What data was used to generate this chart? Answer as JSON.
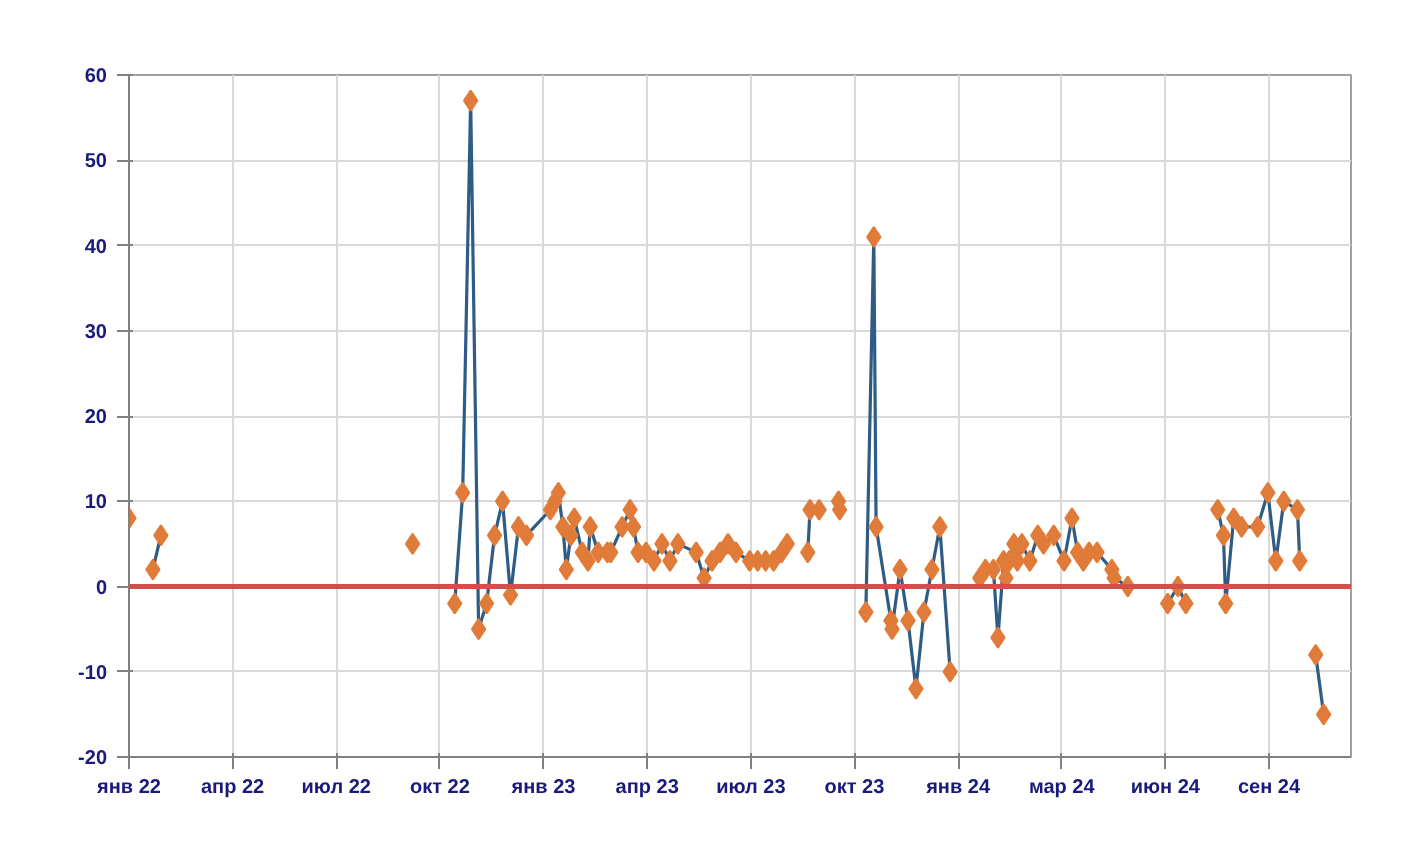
{
  "chart_data": {
    "type": "line",
    "x": [
      "2022-01-01",
      "2022-01-15",
      "2022-01-22",
      "2022-01-29",
      "2022-05-01",
      "2022-09-07",
      "2022-09-25",
      "2022-10-14",
      "2022-10-21",
      "2022-10-28",
      "2022-11-04",
      "2022-11-11",
      "2022-11-18",
      "2022-11-25",
      "2022-12-02",
      "2022-12-09",
      "2022-12-16",
      "2023-01-06",
      "2023-01-10",
      "2023-01-13",
      "2023-01-17",
      "2023-01-20",
      "2023-01-24",
      "2023-01-27",
      "2023-02-03",
      "2023-02-08",
      "2023-02-10",
      "2023-02-17",
      "2023-02-25",
      "2023-02-28",
      "2023-03-10",
      "2023-03-17",
      "2023-03-20",
      "2023-03-24",
      "2023-03-31",
      "2023-04-07",
      "2023-04-14",
      "2023-04-21",
      "2023-04-28",
      "2023-05-14",
      "2023-05-21",
      "2023-05-28",
      "2023-06-04",
      "2023-06-11",
      "2023-06-18",
      "2023-06-30",
      "2023-07-07",
      "2023-07-14",
      "2023-07-21",
      "2023-07-28",
      "2023-08-02",
      "2023-08-10",
      "2023-08-20",
      "2023-08-22",
      "2023-08-30",
      "2023-09-08",
      "2023-09-16",
      "2023-09-17",
      "2023-09-30",
      "2023-10-10",
      "2023-10-17",
      "2023-10-19",
      "2023-11-01",
      "2023-11-02",
      "2023-11-09",
      "2023-11-16",
      "2023-11-23",
      "2023-11-30",
      "2023-12-07",
      "2023-12-14",
      "2023-12-23",
      "2024-01-05",
      "2024-01-18",
      "2024-01-23",
      "2024-01-30",
      "2024-02-03",
      "2024-02-08",
      "2024-02-10",
      "2024-02-13",
      "2024-02-17",
      "2024-02-20",
      "2024-02-24",
      "2024-03-02",
      "2024-03-09",
      "2024-03-14",
      "2024-03-23",
      "2024-04-01",
      "2024-04-08",
      "2024-04-13",
      "2024-04-18",
      "2024-04-23",
      "2024-04-30",
      "2024-05-13",
      "2024-05-15",
      "2024-05-27",
      "2024-06-10",
      "2024-07-01",
      "2024-07-10",
      "2024-07-17",
      "2024-08-01",
      "2024-08-14",
      "2024-08-19",
      "2024-08-21",
      "2024-08-28",
      "2024-09-04",
      "2024-09-18",
      "2024-09-27",
      "2024-10-04",
      "2024-10-11",
      "2024-10-23",
      "2024-10-25",
      "2024-11-01",
      "2024-11-08",
      "2024-11-15"
    ],
    "series": [
      {
        "color": "#2e5c85",
        "values": [
          8,
          null,
          2,
          6,
          null,
          5,
          null,
          -2,
          11,
          57,
          -5,
          -2,
          6,
          10,
          -1,
          7,
          6,
          9,
          10,
          11,
          7,
          2,
          6,
          8,
          4,
          3,
          7,
          4,
          4,
          4,
          7,
          9,
          7,
          4,
          4,
          3,
          5,
          3,
          5,
          4,
          1,
          3,
          4,
          5,
          4,
          3,
          3,
          3,
          3,
          4,
          5,
          null,
          4,
          9,
          9,
          null,
          10,
          9,
          null,
          -3,
          41,
          7,
          -4,
          -5,
          2,
          -4,
          -12,
          -3,
          2,
          7,
          -10,
          null,
          1,
          2,
          2,
          -6,
          3,
          1,
          3,
          5,
          3,
          5,
          3,
          6,
          5,
          6,
          3,
          8,
          4,
          3,
          4,
          4,
          2,
          1,
          0,
          null,
          -2,
          0,
          -2,
          null,
          9,
          6,
          -2,
          8,
          7,
          7,
          11,
          3,
          10,
          9,
          3,
          null,
          -8,
          -15
        ],
        "colors": [
          "#e07b39",
          "#e07b39",
          "#e07b39",
          "#e07b39",
          "#e07b39",
          "#e07b39",
          "#e07b39",
          "#e07b39",
          "#e07b39",
          "#e07b39",
          "#e07b39",
          "#e07b39",
          "#e07b39",
          "#e07b39",
          "#e07b39",
          "#e07b39",
          "#e07b39",
          "#e07b39",
          "#e07b39",
          "#e07b39",
          "#e07b39",
          "#e07b39",
          "#e07b39",
          "#e07b39",
          "#e07b39",
          "#e07b39",
          "#e07b39",
          "#e07b39",
          "#e07b39",
          "#e07b39",
          "#e07b39",
          "#e07b39",
          "#e07b39",
          "#e07b39",
          "#e07b39",
          "#e07b39",
          "#e07b39",
          "#e07b39",
          "#e07b39",
          "#e07b39",
          "#e07b39",
          "#e07b39",
          "#e07b39",
          "#e07b39",
          "#e07b39",
          "#e07b39",
          "#e07b39",
          "#e07b39",
          "#e07b39",
          "#e07b39",
          "#e07b39",
          "#e07b39",
          "#e07b39",
          "#e07b39",
          "#e07b39",
          "#e07b39",
          "#e07b39",
          "#e07b39",
          "#e07b39",
          "#e07b39",
          "#e07b39",
          "#e07b39",
          "#e07b39",
          "#e07b39",
          "#e07b39",
          "#e07b39",
          "#e07b39",
          "#e07b39",
          "#e07b39",
          "#e07b39",
          "#e07b39",
          "#e07b39",
          "#e07b39",
          "#e07b39",
          "#e07b39",
          "#e07b39",
          "#e07b39",
          "#e07b39",
          "#e07b39",
          "#e07b39",
          "#e07b39",
          "#e07b39",
          "#e07b39",
          "#e07b39",
          "#e07b39",
          "#e07b39",
          "#e07b39",
          "#e07b39",
          "#e07b39",
          "#e07b39",
          "#e07b39",
          "#e07b39",
          "#e07b39",
          "#e07b39",
          "#e07b39",
          "#e07b39",
          "#e07b39",
          "#e07b39",
          "#e07b39",
          "#e07b39",
          "#e07b39",
          "#e07b39",
          "#e07b39",
          "#e07b39",
          "#e07b39",
          "#e07b39",
          "#e07b39",
          "#e07b39",
          "#e07b39",
          "#e07b39",
          "#e07b39",
          "#e07b39",
          "#e07b39",
          "#e07b39"
        ]
      }
    ],
    "xlim": [
      "2022-01-01",
      "2024-12-09"
    ],
    "xticks": [
      {
        "value": "2022-01-01",
        "label": "янв 22"
      },
      {
        "value": "2022-04-02",
        "label": "апр 22"
      },
      {
        "value": "2022-07-02",
        "label": "июл 22"
      },
      {
        "value": "2022-10-01",
        "label": "окт 22"
      },
      {
        "value": "2022-12-31",
        "label": "янв 23"
      },
      {
        "value": "2023-04-01",
        "label": "апр 23"
      },
      {
        "value": "2023-07-01",
        "label": "июл 23"
      },
      {
        "value": "2023-09-30",
        "label": "окт 23"
      },
      {
        "value": "2023-12-30",
        "label": "янв 24"
      },
      {
        "value": "2024-03-30",
        "label": "мар 24"
      },
      {
        "value": "2024-06-29",
        "label": "июн 24"
      },
      {
        "value": "2024-09-28",
        "label": "сен 24"
      }
    ],
    "ylim": [
      -20,
      60
    ],
    "yticks": [
      -20,
      -10,
      0,
      10,
      20,
      30,
      40,
      50,
      60
    ],
    "ref_lines": [
      {
        "axis": "y",
        "value": 0,
        "color": "#d0504a"
      }
    ],
    "grid": true,
    "marker": "diamond",
    "line_style": "solid"
  }
}
